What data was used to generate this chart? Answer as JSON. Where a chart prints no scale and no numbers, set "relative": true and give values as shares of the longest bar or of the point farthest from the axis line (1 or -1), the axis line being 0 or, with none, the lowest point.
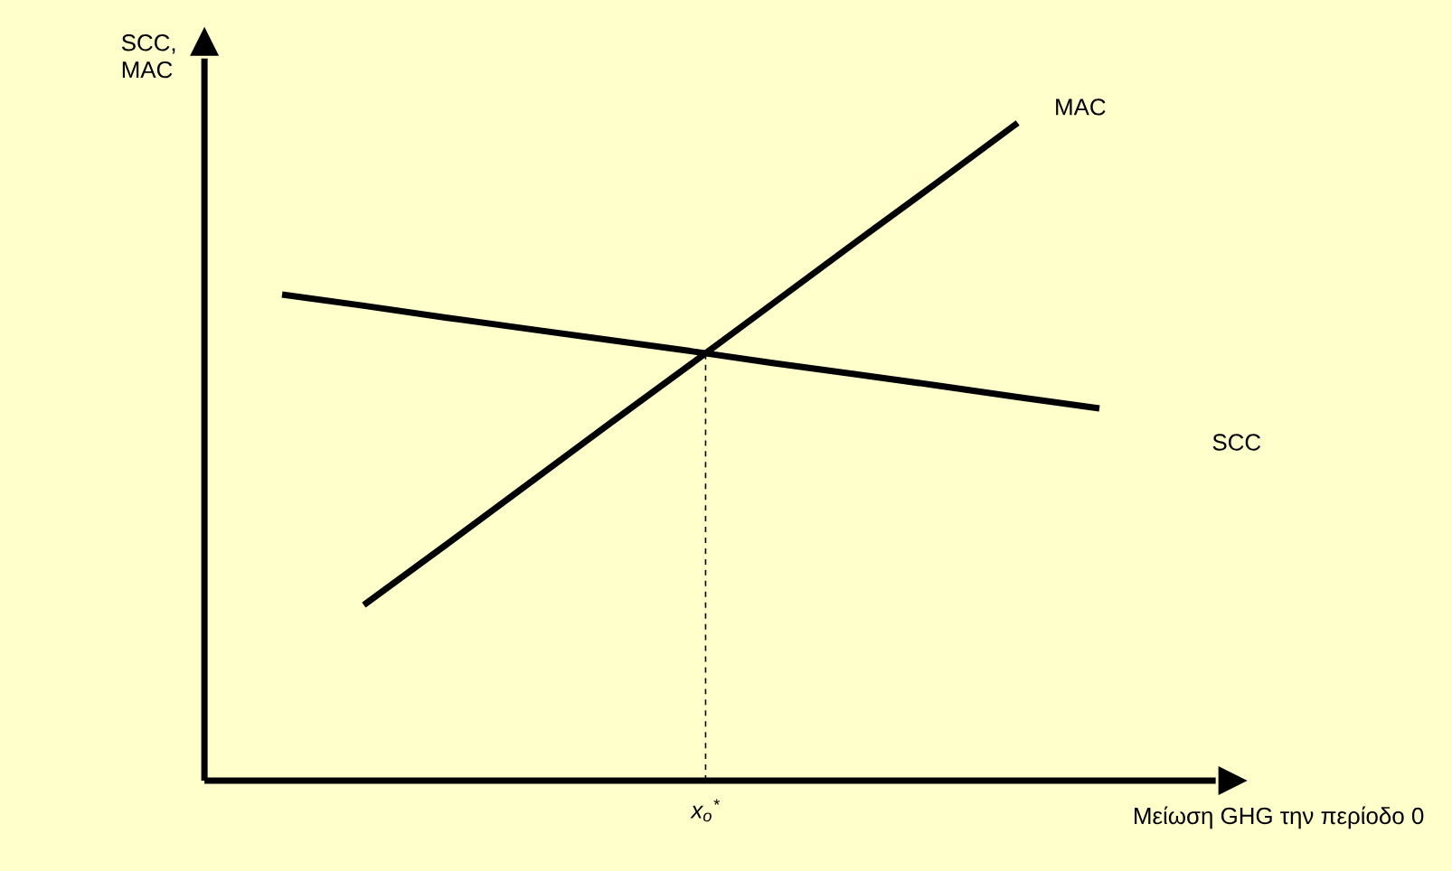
{
  "chart_data": {
    "type": "line",
    "relative": true,
    "xlabel": "Μείωση GHG την περίοδο 0",
    "ylabel": "SCC, MAC",
    "categories": [
      null,
      null,
      null,
      null,
      null,
      null,
      null,
      null,
      null,
      null,
      null
    ],
    "series": [
      {
        "name": "MAC",
        "color": "#000000",
        "values": [
          null,
          0.267,
          0.358,
          0.45,
          0.542,
          0.633,
          0.725,
          0.817,
          0.908,
          1.0,
          null
        ]
      },
      {
        "name": "SCC",
        "color": "#000000",
        "values": [
          0.739,
          0.722,
          0.704,
          0.687,
          0.67,
          0.653,
          0.635,
          0.618,
          0.601,
          0.583,
          0.566
        ]
      }
    ],
    "annotations": [
      "x$_{o}$$^{*}$"
    ]
  }
}
